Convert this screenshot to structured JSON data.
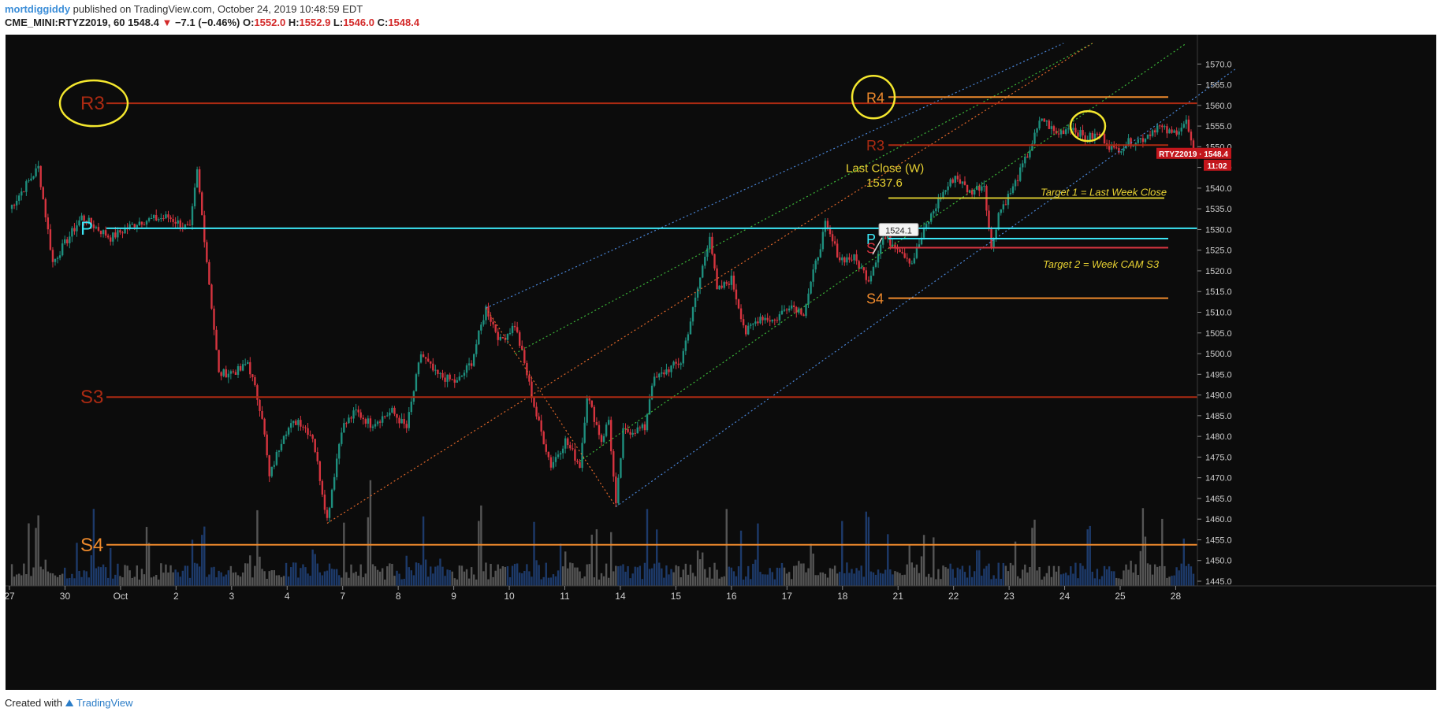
{
  "header": {
    "author": "mortdiggiddy",
    "published_text": " published on TradingView.com, October 24, 2019 10:48:59 EDT",
    "symbol": "CME_MINI:RTYZ2019, 60",
    "last": "1548.4",
    "change_arrow": "▼",
    "change": "−7.1 (−0.46%)",
    "o_label": "O:",
    "o_value": "1552.0",
    "h_label": "H:",
    "h_value": "1552.9",
    "l_label": "L:",
    "l_value": "1546.0",
    "c_label": "C:",
    "c_value": "1548.4"
  },
  "footer": {
    "created_with": "Created with",
    "brand": "TradingView"
  },
  "colors": {
    "background": "#0c0c0c",
    "up": "#1e8f7e",
    "down": "#d6343f",
    "monthly_pivot": "#ab2a12",
    "weekly_pivot": "#ef8a2c",
    "pivot": "#3be6f5",
    "highlight": "#f4e72e",
    "channel_blue": "#4a86d8",
    "channel_green": "#3db83a",
    "channel_orange": "#e0672a",
    "axis_text": "#cfcfcf",
    "price_tag": "#c3161c"
  },
  "chart_data": {
    "type": "candlestick",
    "ylim": [
      1445,
      1575
    ],
    "y_ticks": [
      1445,
      1450,
      1455,
      1460,
      1465,
      1470,
      1475,
      1480,
      1485,
      1490,
      1495,
      1500,
      1505,
      1510,
      1515,
      1520,
      1525,
      1530,
      1535,
      1540,
      1545,
      1550,
      1555,
      1560,
      1565,
      1570
    ],
    "x_ticks": [
      "27",
      "30",
      "Oct",
      "2",
      "3",
      "4",
      "7",
      "8",
      "9",
      "10",
      "11",
      "14",
      "15",
      "16",
      "17",
      "18",
      "21",
      "22",
      "23",
      "24",
      "25",
      "28"
    ],
    "anchors": [
      [
        0,
        1535
      ],
      [
        4,
        1545
      ],
      [
        6,
        1522
      ],
      [
        10,
        1533
      ],
      [
        14,
        1528
      ],
      [
        18,
        1532
      ],
      [
        22,
        1533
      ],
      [
        25,
        1530
      ],
      [
        26,
        1544
      ],
      [
        27,
        1528
      ],
      [
        29,
        1495
      ],
      [
        32,
        1496
      ],
      [
        33,
        1498
      ],
      [
        35,
        1485
      ],
      [
        36,
        1470
      ],
      [
        38,
        1481
      ],
      [
        40,
        1484
      ],
      [
        42,
        1480
      ],
      [
        44,
        1460
      ],
      [
        46,
        1482
      ],
      [
        48,
        1486
      ],
      [
        50,
        1483
      ],
      [
        53,
        1486
      ],
      [
        55,
        1482
      ],
      [
        57,
        1500
      ],
      [
        59,
        1495
      ],
      [
        62,
        1493
      ],
      [
        64,
        1498
      ],
      [
        66,
        1511
      ],
      [
        68,
        1503
      ],
      [
        70,
        1507
      ],
      [
        71,
        1500
      ],
      [
        73,
        1485
      ],
      [
        75,
        1473
      ],
      [
        77,
        1479
      ],
      [
        79,
        1473
      ],
      [
        80,
        1490
      ],
      [
        82,
        1479
      ],
      [
        83,
        1484
      ],
      [
        84,
        1463
      ],
      [
        85,
        1481
      ],
      [
        88,
        1482
      ],
      [
        89,
        1493
      ],
      [
        91,
        1496
      ],
      [
        93,
        1498
      ],
      [
        95,
        1513
      ],
      [
        97,
        1529
      ],
      [
        98,
        1515
      ],
      [
        100,
        1518
      ],
      [
        102,
        1505
      ],
      [
        104,
        1509
      ],
      [
        106,
        1508
      ],
      [
        108,
        1512
      ],
      [
        110,
        1510
      ],
      [
        111,
        1517
      ],
      [
        113,
        1531
      ],
      [
        115,
        1523
      ],
      [
        117,
        1523
      ],
      [
        119,
        1518
      ],
      [
        121,
        1528
      ],
      [
        123,
        1526
      ],
      [
        125,
        1522
      ],
      [
        127,
        1531
      ],
      [
        129,
        1538
      ],
      [
        131,
        1543
      ],
      [
        133,
        1539
      ],
      [
        135,
        1541
      ],
      [
        136,
        1525
      ],
      [
        137,
        1534
      ],
      [
        139,
        1540
      ],
      [
        141,
        1548
      ],
      [
        143,
        1557
      ],
      [
        145,
        1553
      ],
      [
        147,
        1555
      ],
      [
        149,
        1552
      ],
      [
        151,
        1553
      ],
      [
        153,
        1549
      ],
      [
        155,
        1551
      ],
      [
        157,
        1552
      ],
      [
        159,
        1555
      ],
      [
        161,
        1553
      ],
      [
        163,
        1556
      ],
      [
        164,
        1548.4
      ]
    ],
    "last_price": "1548.4",
    "last_price_tag": "RTYZ2019 · 1548.4",
    "last_price_timer": "11:02",
    "price_callout": "1524.1",
    "levels": [
      {
        "name": "R3",
        "price": 1560.5,
        "color": "#ab2a12",
        "label_side": "left",
        "label": "R3"
      },
      {
        "name": "P",
        "price": 1530.3,
        "color": "#3be6f5",
        "label_side": "left",
        "label": "P"
      },
      {
        "name": "S3",
        "price": 1489.5,
        "color": "#ab2a12",
        "label_side": "left",
        "label": "S3"
      },
      {
        "name": "S4",
        "price": 1453.8,
        "color": "#ef8a2c",
        "label_side": "left",
        "label": "S4"
      }
    ],
    "weekly_levels": [
      {
        "name": "R4",
        "price": 1562.0,
        "color": "#ef8a2c",
        "label": "R4"
      },
      {
        "name": "R3",
        "price": 1550.4,
        "color": "#ab2a12",
        "label": "R3"
      },
      {
        "name": "last_close",
        "price": 1537.6,
        "color": "#d4c42e",
        "label": ""
      },
      {
        "name": "P",
        "price": 1527.8,
        "color": "#3be6f5",
        "label": "P"
      },
      {
        "name": "S3",
        "price": 1525.6,
        "color": "#d6343f",
        "label": "S"
      },
      {
        "name": "S4",
        "price": 1513.4,
        "color": "#ef8a2c",
        "label": "S4"
      }
    ],
    "annotations": {
      "last_close_title": "Last Close (W)",
      "last_close_value": "1537.6",
      "target1": "Target 1 = Last Week Close",
      "target2": "Target 2 = Week CAM S3"
    }
  }
}
